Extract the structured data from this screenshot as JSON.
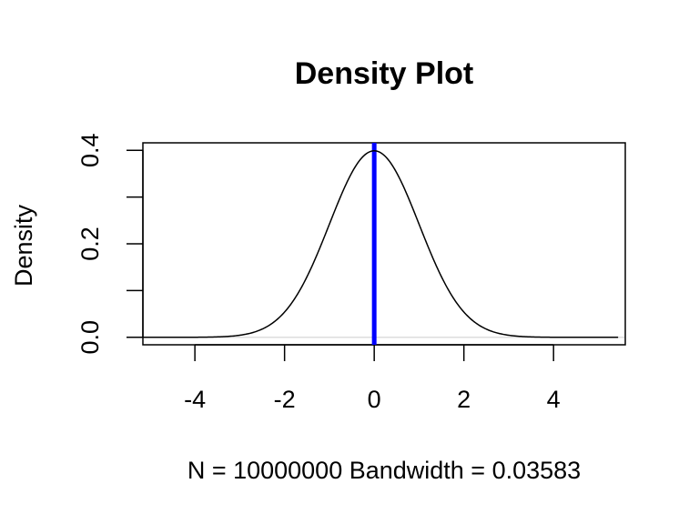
{
  "chart_data": {
    "type": "line",
    "title": "Density Plot",
    "xlabel": "N = 10000000   Bandwidth = 0.03583",
    "ylabel": "Density",
    "xlim": [
      -5.16,
      5.6
    ],
    "ylim": [
      -0.016,
      0.416
    ],
    "x_ticks": [
      -4,
      -2,
      0,
      2,
      4
    ],
    "x_tick_labels": [
      "-4",
      "-2",
      "0",
      "2",
      "4"
    ],
    "y_ticks": [
      0.0,
      0.1,
      0.2,
      0.3,
      0.4
    ],
    "y_tick_labels": [
      "0.0",
      "",
      "0.2",
      "",
      "0.4"
    ],
    "grid": false,
    "series": [
      {
        "kind": "density-curve",
        "color": "#000000",
        "x_range": [
          -5.16,
          5.44
        ],
        "mean": 0,
        "sd": 1
      }
    ],
    "reference_lines": [
      {
        "orientation": "vertical",
        "x": 0,
        "color": "#0000ff"
      },
      {
        "orientation": "horizontal",
        "y": 0,
        "color": "#dddddd"
      }
    ]
  }
}
